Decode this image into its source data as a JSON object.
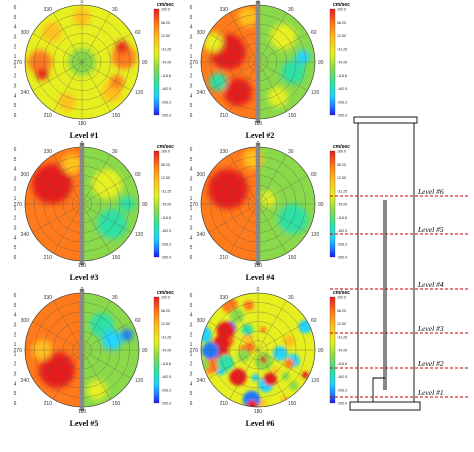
{
  "colors": {
    "scale": [
      "#1a14ff",
      "#1c7cff",
      "#22d4ff",
      "#2fe0a4",
      "#8ad94a",
      "#e6f020",
      "#ffc01a",
      "#ff7a1a",
      "#e61e1e"
    ],
    "pole": "#888888",
    "guide": "#cc0000"
  },
  "polar_axes": {
    "angles_top": [
      "0",
      "30",
      "330"
    ],
    "angles_side": [
      "60",
      "300",
      "90",
      "270",
      "120",
      "240"
    ],
    "angles_bottom": [
      "150",
      "210",
      "180"
    ],
    "radial": [
      "6",
      "5",
      "4",
      "3",
      "2",
      "1",
      "1",
      "2",
      "3",
      "4",
      "5",
      "6"
    ]
  },
  "colorbar": {
    "unit": "cm/sec",
    "ticks": [
      "100.0",
      "56.25",
      "12.50",
      "-31.25",
      "-75.00",
      "-118.8",
      "-162.5",
      "-206.3",
      "-250.0"
    ]
  },
  "panels": [
    {
      "caption": "Level #1",
      "pattern": "uniform",
      "has_pole": false
    },
    {
      "caption": "Level #2",
      "pattern": "split",
      "has_pole": true
    },
    {
      "caption": "Level #3",
      "pattern": "split",
      "has_pole": true
    },
    {
      "caption": "Level #4",
      "pattern": "split",
      "has_pole": true
    },
    {
      "caption": "Level #5",
      "pattern": "split",
      "has_pole": true
    },
    {
      "caption": "Level #6",
      "pattern": "scatter",
      "has_pole": false
    }
  ],
  "column_diagram": {
    "levels": [
      "Level #6",
      "Level #5",
      "Level #4",
      "Level #3",
      "Level #2",
      "Level #1"
    ]
  }
}
